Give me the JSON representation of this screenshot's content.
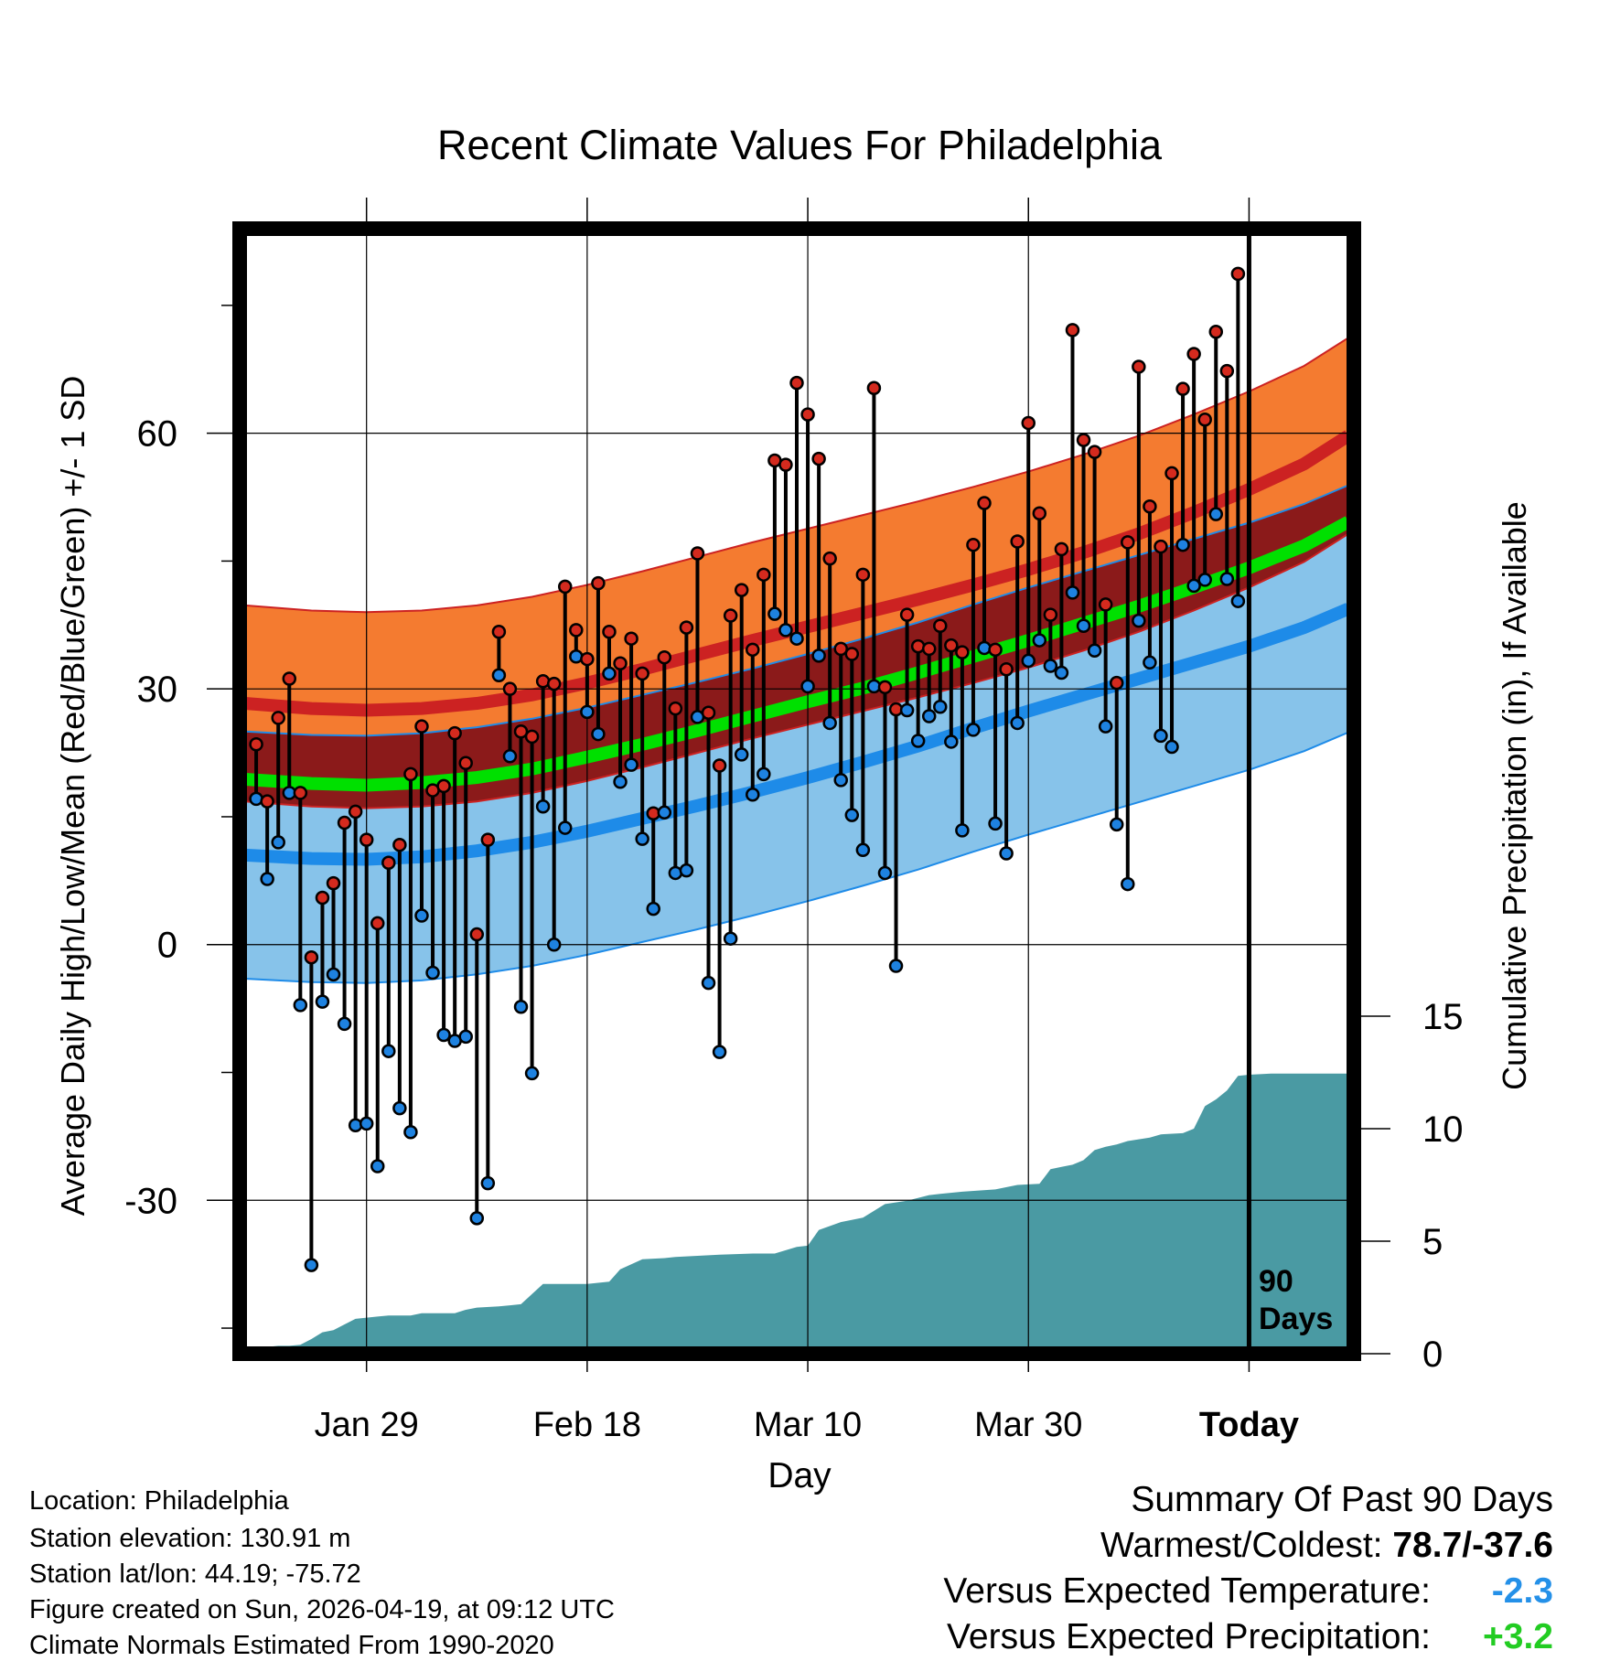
{
  "chart_data": {
    "type": "line",
    "title": "Recent Climate Values For Philadelphia",
    "xlabel": "Day",
    "ylabel": "Average Daily High/Low/Mean (Red/Blue/Green) +/- 1 SD",
    "ylabel2": "Cumulative Precipitation (in), If Available",
    "x_ticks": [
      {
        "day": 10,
        "label": "Jan 29"
      },
      {
        "day": 30,
        "label": "Feb 18"
      },
      {
        "day": 50,
        "label": "Mar 10"
      },
      {
        "day": 70,
        "label": "Mar 30"
      },
      {
        "day": 90,
        "label": "Today"
      }
    ],
    "xlim": [
      -1.5,
      99.5
    ],
    "y_ticks": [
      -30,
      0,
      30,
      60
    ],
    "ylim": [
      -48,
      84
    ],
    "y2_ticks": [
      0,
      5,
      10,
      15
    ],
    "y2lim": [
      0,
      50
    ],
    "today_marker_day": 90,
    "today_marker_label_line1": "90",
    "today_marker_label_line2": "Days",
    "normals": {
      "x": [
        -1,
        5,
        10,
        15,
        20,
        25,
        30,
        35,
        40,
        45,
        50,
        55,
        60,
        65,
        70,
        75,
        80,
        85,
        90,
        95,
        99
      ],
      "high_mean": [
        28.3,
        27.7,
        27.5,
        27.7,
        28.3,
        29.3,
        30.7,
        32.3,
        34.0,
        35.7,
        37.3,
        38.9,
        40.5,
        42.2,
        44.0,
        46.0,
        48.2,
        50.7,
        53.4,
        56.4,
        59.7
      ],
      "high_sd": 11.5,
      "low_mean": [
        10.5,
        10.1,
        10.0,
        10.3,
        11.0,
        12.0,
        13.3,
        14.8,
        16.3,
        17.9,
        19.6,
        21.4,
        23.3,
        25.4,
        27.4,
        29.3,
        31.2,
        33.1,
        35.0,
        37.2,
        39.4
      ],
      "low_sd": 14.5,
      "avg_mean": [
        19.4,
        18.9,
        18.7,
        19.0,
        19.6,
        20.6,
        22.0,
        23.5,
        25.1,
        26.8,
        28.5,
        30.1,
        31.9,
        33.8,
        35.7,
        37.7,
        39.7,
        41.9,
        44.2,
        46.8,
        49.6
      ]
    },
    "series": [
      {
        "name": "Daily High",
        "values": [
          23.5,
          16.8,
          26.6,
          31.2,
          17.8,
          -1.5,
          5.5,
          7.2,
          14.3,
          15.6,
          12.3,
          2.5,
          9.6,
          11.7,
          20.0,
          25.6,
          18.1,
          18.6,
          24.8,
          21.3,
          1.2,
          12.3,
          36.7,
          30.0,
          25.0,
          24.4,
          30.9,
          30.6,
          42.0,
          36.9,
          33.5,
          42.4,
          36.7,
          33.0,
          35.9,
          31.8,
          15.4,
          33.7,
          27.7,
          37.2,
          45.9,
          27.2,
          21.0,
          38.6,
          41.6,
          34.6,
          43.4,
          56.8,
          56.3,
          65.9,
          62.2,
          57.0,
          45.3,
          34.7,
          34.1,
          43.4,
          65.3,
          30.2,
          27.6,
          38.7,
          35.0,
          34.7,
          37.4,
          35.1,
          34.3,
          46.9,
          51.8,
          34.6,
          32.3,
          47.3,
          61.2,
          50.6,
          38.7,
          46.4,
          72.1,
          59.2,
          57.8,
          39.9,
          30.7,
          47.2,
          67.8,
          51.4,
          46.7,
          55.3,
          65.2,
          69.3,
          61.6,
          71.9,
          67.3,
          78.7
        ]
      },
      {
        "name": "Daily Low",
        "values": [
          17.1,
          7.7,
          12.0,
          17.8,
          -7.1,
          -37.6,
          -6.7,
          -3.5,
          -9.3,
          -21.2,
          -21.0,
          -26.0,
          -12.5,
          -19.2,
          -22.0,
          3.4,
          -3.3,
          -10.6,
          -11.3,
          -10.8,
          -32.1,
          -28.0,
          31.6,
          22.1,
          -7.3,
          -15.1,
          16.2,
          0.0,
          13.7,
          33.8,
          27.3,
          24.7,
          31.8,
          19.1,
          21.1,
          12.4,
          4.2,
          15.5,
          8.4,
          8.7,
          26.7,
          -4.5,
          -12.6,
          0.7,
          22.3,
          17.6,
          20.0,
          38.8,
          36.9,
          35.9,
          30.3,
          33.9,
          26.0,
          19.3,
          15.2,
          11.1,
          30.3,
          8.4,
          -2.5,
          27.5,
          23.9,
          26.8,
          27.9,
          23.8,
          13.4,
          25.2,
          34.8,
          14.2,
          10.7,
          26.0,
          33.3,
          35.7,
          32.7,
          31.9,
          41.3,
          37.4,
          34.5,
          25.6,
          14.1,
          7.1,
          38.0,
          33.1,
          24.5,
          23.2,
          46.9,
          42.1,
          42.8,
          50.5,
          42.9,
          40.3
        ]
      },
      {
        "name": "Cumulative Precipitation",
        "x": [
          -1,
          1,
          2,
          3,
          4,
          5,
          6,
          7,
          8,
          9,
          10,
          11,
          12,
          14,
          15,
          17,
          18,
          19,
          20,
          22,
          23,
          24,
          26,
          28,
          30,
          31,
          32,
          33,
          35,
          37,
          38,
          40,
          42,
          45,
          47,
          49,
          50,
          51,
          53,
          55,
          57,
          59,
          61,
          62,
          64,
          67,
          69,
          71,
          72,
          73,
          74,
          75,
          76,
          77,
          78,
          79,
          81,
          82,
          84,
          85,
          86,
          87,
          88,
          89,
          90,
          92,
          94,
          96,
          98,
          99
        ],
        "values": [
          0,
          0.3,
          0.35,
          0.35,
          0.4,
          0.65,
          0.95,
          1.05,
          1.3,
          1.55,
          1.6,
          1.65,
          1.7,
          1.7,
          1.8,
          1.8,
          1.8,
          1.95,
          2.05,
          2.1,
          2.15,
          2.2,
          3.1,
          3.1,
          3.1,
          3.15,
          3.2,
          3.75,
          4.2,
          4.25,
          4.3,
          4.35,
          4.4,
          4.45,
          4.45,
          4.75,
          4.8,
          5.5,
          5.85,
          6.05,
          6.65,
          6.8,
          7.05,
          7.1,
          7.2,
          7.3,
          7.5,
          7.55,
          8.2,
          8.3,
          8.4,
          8.6,
          9.05,
          9.2,
          9.3,
          9.45,
          9.6,
          9.75,
          9.8,
          10.0,
          11.0,
          11.3,
          11.7,
          12.35,
          12.4,
          12.45,
          12.45,
          12.45,
          12.45,
          12.45
        ]
      }
    ]
  },
  "info": {
    "location": "Location: Philadelphia",
    "elevation": "Station elevation: 130.91 m",
    "latlon": "Station lat/lon: 44.19; -75.72",
    "created": "Figure created on Sun, 2026-04-19, at 09:12 UTC",
    "normals": "Climate Normals Estimated From 1990-2020"
  },
  "summary": {
    "heading": "Summary Of Past 90 Days",
    "warmest_label": "Warmest/Coldest:",
    "warmest_value": "78.7/-37.6",
    "temp_label": "Versus Expected Temperature:",
    "temp_value": "-2.3",
    "precip_label": "Versus Expected Precipitation:",
    "precip_value": "+3.2"
  },
  "colors": {
    "high_band": "#F47B30",
    "high_line": "#CC2222",
    "overlap_band": "#8B1A1A",
    "mean_line": "#00E000",
    "low_band": "#87C3EA",
    "low_line": "#1E8BE8",
    "precip_fill": "#4A9AA3",
    "high_dot": "#D42A1E",
    "low_dot": "#1E82E0",
    "temp_value": "#2490E8",
    "precip_value": "#22CC22"
  }
}
